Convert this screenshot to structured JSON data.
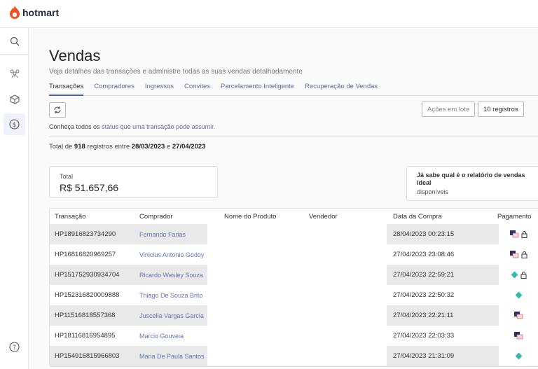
{
  "app": {
    "brand": "hotmart"
  },
  "sidebar": {
    "items": [
      {
        "icon": "search-icon"
      },
      {
        "icon": "users-icon"
      },
      {
        "icon": "box-icon"
      },
      {
        "icon": "dollar-icon",
        "active": true
      },
      {
        "icon": "help-icon"
      }
    ]
  },
  "page": {
    "title": "Vendas",
    "subtitle": "Veja detalhes das transações e administre todas as suas vendas detalhadamente"
  },
  "tabs": [
    {
      "label": "Transações",
      "active": true
    },
    {
      "label": "Compradores"
    },
    {
      "label": "Ingressos"
    },
    {
      "label": "Convites"
    },
    {
      "label": "Parcelamento Inteligente"
    },
    {
      "label": "Recuperação de Vendas"
    }
  ],
  "toolbar": {
    "bulk_actions": "Ações em lote",
    "per_page": "10 registros"
  },
  "info": {
    "prefix": "Conheça todos os ",
    "link": "status que uma transação pode assumir."
  },
  "summary": {
    "p1": "Total de ",
    "count": "918",
    "p2": " registros entre ",
    "start": "28/03/2023",
    "p3": " e ",
    "end": "27/04/2023"
  },
  "total_card": {
    "label": "Total",
    "value": "R$ 51.657,66"
  },
  "promo_card": {
    "title": "Já sabe qual é o relatório de vendas ideal",
    "text": "disponíveis"
  },
  "colors": {
    "accent": "#4a5fc1",
    "link": "#6a73b8",
    "brand": "#f04e23",
    "arrow": "#d11a1a"
  },
  "table": {
    "headers": [
      "Transação",
      "Comprador",
      "Nome do Produto",
      "Vendedor",
      "Data da Compra",
      "Pagamento"
    ],
    "rows": [
      {
        "id": "HP18916823734290",
        "buyer": "Fernando Farias",
        "date": "28/04/2023 00:23:15",
        "payment": "card",
        "locked": true
      },
      {
        "id": "HP16816820969257",
        "buyer": "Vinicius Antonio Godoy",
        "date": "27/04/2023 23:08:46",
        "payment": "card",
        "locked": true
      },
      {
        "id": "HP151752930934704",
        "buyer": "Ricardo Wesley Souza",
        "date": "27/04/2023 22:59:21",
        "payment": "pix",
        "locked": true
      },
      {
        "id": "HP152316820009888",
        "buyer": "Thiago De Souza Brito",
        "date": "27/04/2023 22:50:32",
        "payment": "pix",
        "locked": false
      },
      {
        "id": "HP11516818557368",
        "buyer": "Juscelia Vargas Garcia",
        "date": "27/04/2023 22:21:11",
        "payment": "card",
        "locked": false
      },
      {
        "id": "HP18116816954895",
        "buyer": "Marcio Gouveia",
        "date": "27/04/2023 22:03:33",
        "payment": "card",
        "locked": false
      },
      {
        "id": "HP154916815966803",
        "buyer": "Maria De Paula Santos",
        "date": "27/04/2023 21:31:09",
        "payment": "pix",
        "locked": false
      }
    ]
  }
}
